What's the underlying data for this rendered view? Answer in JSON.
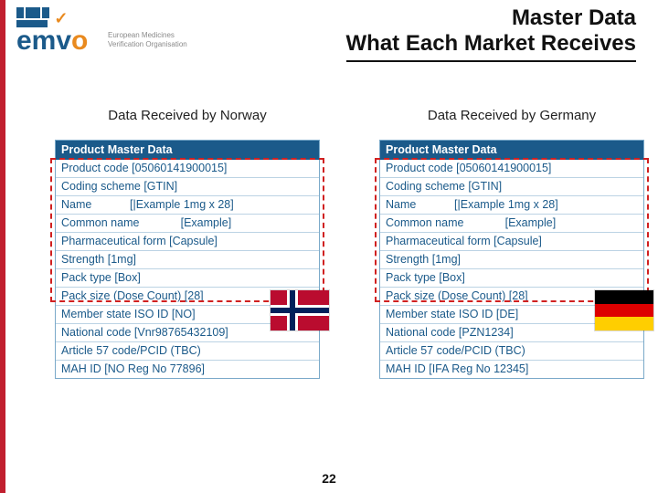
{
  "logo": {
    "text": "emvo",
    "sub_line1": "European Medicines",
    "sub_line2": "Verification Organisation"
  },
  "title": {
    "line1": "Master Data",
    "line2": "What Each Market Receives"
  },
  "columns": {
    "left": {
      "title": "Data Received by Norway",
      "header": "Product Master Data",
      "rows": [
        "Product code [05060141900015]",
        "Coding scheme [GTIN]",
        "Name            [|Example 1mg x 28]",
        "Common name             [Example]",
        "Pharmaceutical form [Capsule]",
        "Strength [1mg]",
        "Pack type [Box]",
        "Pack size (Dose Count) [28]",
        "Member state ISO ID [NO]",
        "National code [Vnr98765432109]",
        "Article 57 code/PCID (TBC)",
        "MAH ID [NO Reg No 77896]"
      ],
      "flag": "norway"
    },
    "right": {
      "title": "Data Received by Germany",
      "header": "Product Master Data",
      "rows": [
        "Product code [05060141900015]",
        "Coding scheme [GTIN]",
        "Name            [|Example 1mg x 28]",
        "Common name             [Example]",
        "Pharmaceutical form [Capsule]",
        "Strength [1mg]",
        "Pack type [Box]",
        "Pack size (Dose Count) [28]",
        "Member state ISO ID [DE]",
        "National code [PZN1234]",
        "Article 57 code/PCID (TBC)",
        "MAH ID [IFA Reg No 12345]"
      ],
      "flag": "germany"
    }
  },
  "dashed_overlay": {
    "top_offset_rows": 1,
    "row_count": 8
  },
  "page_number": "22",
  "colors": {
    "red": "#c11f2f",
    "blue": "#1b5a8a",
    "orange": "#e98a1f",
    "row_border": "#bcd3e4",
    "dashed": "#d02020"
  }
}
